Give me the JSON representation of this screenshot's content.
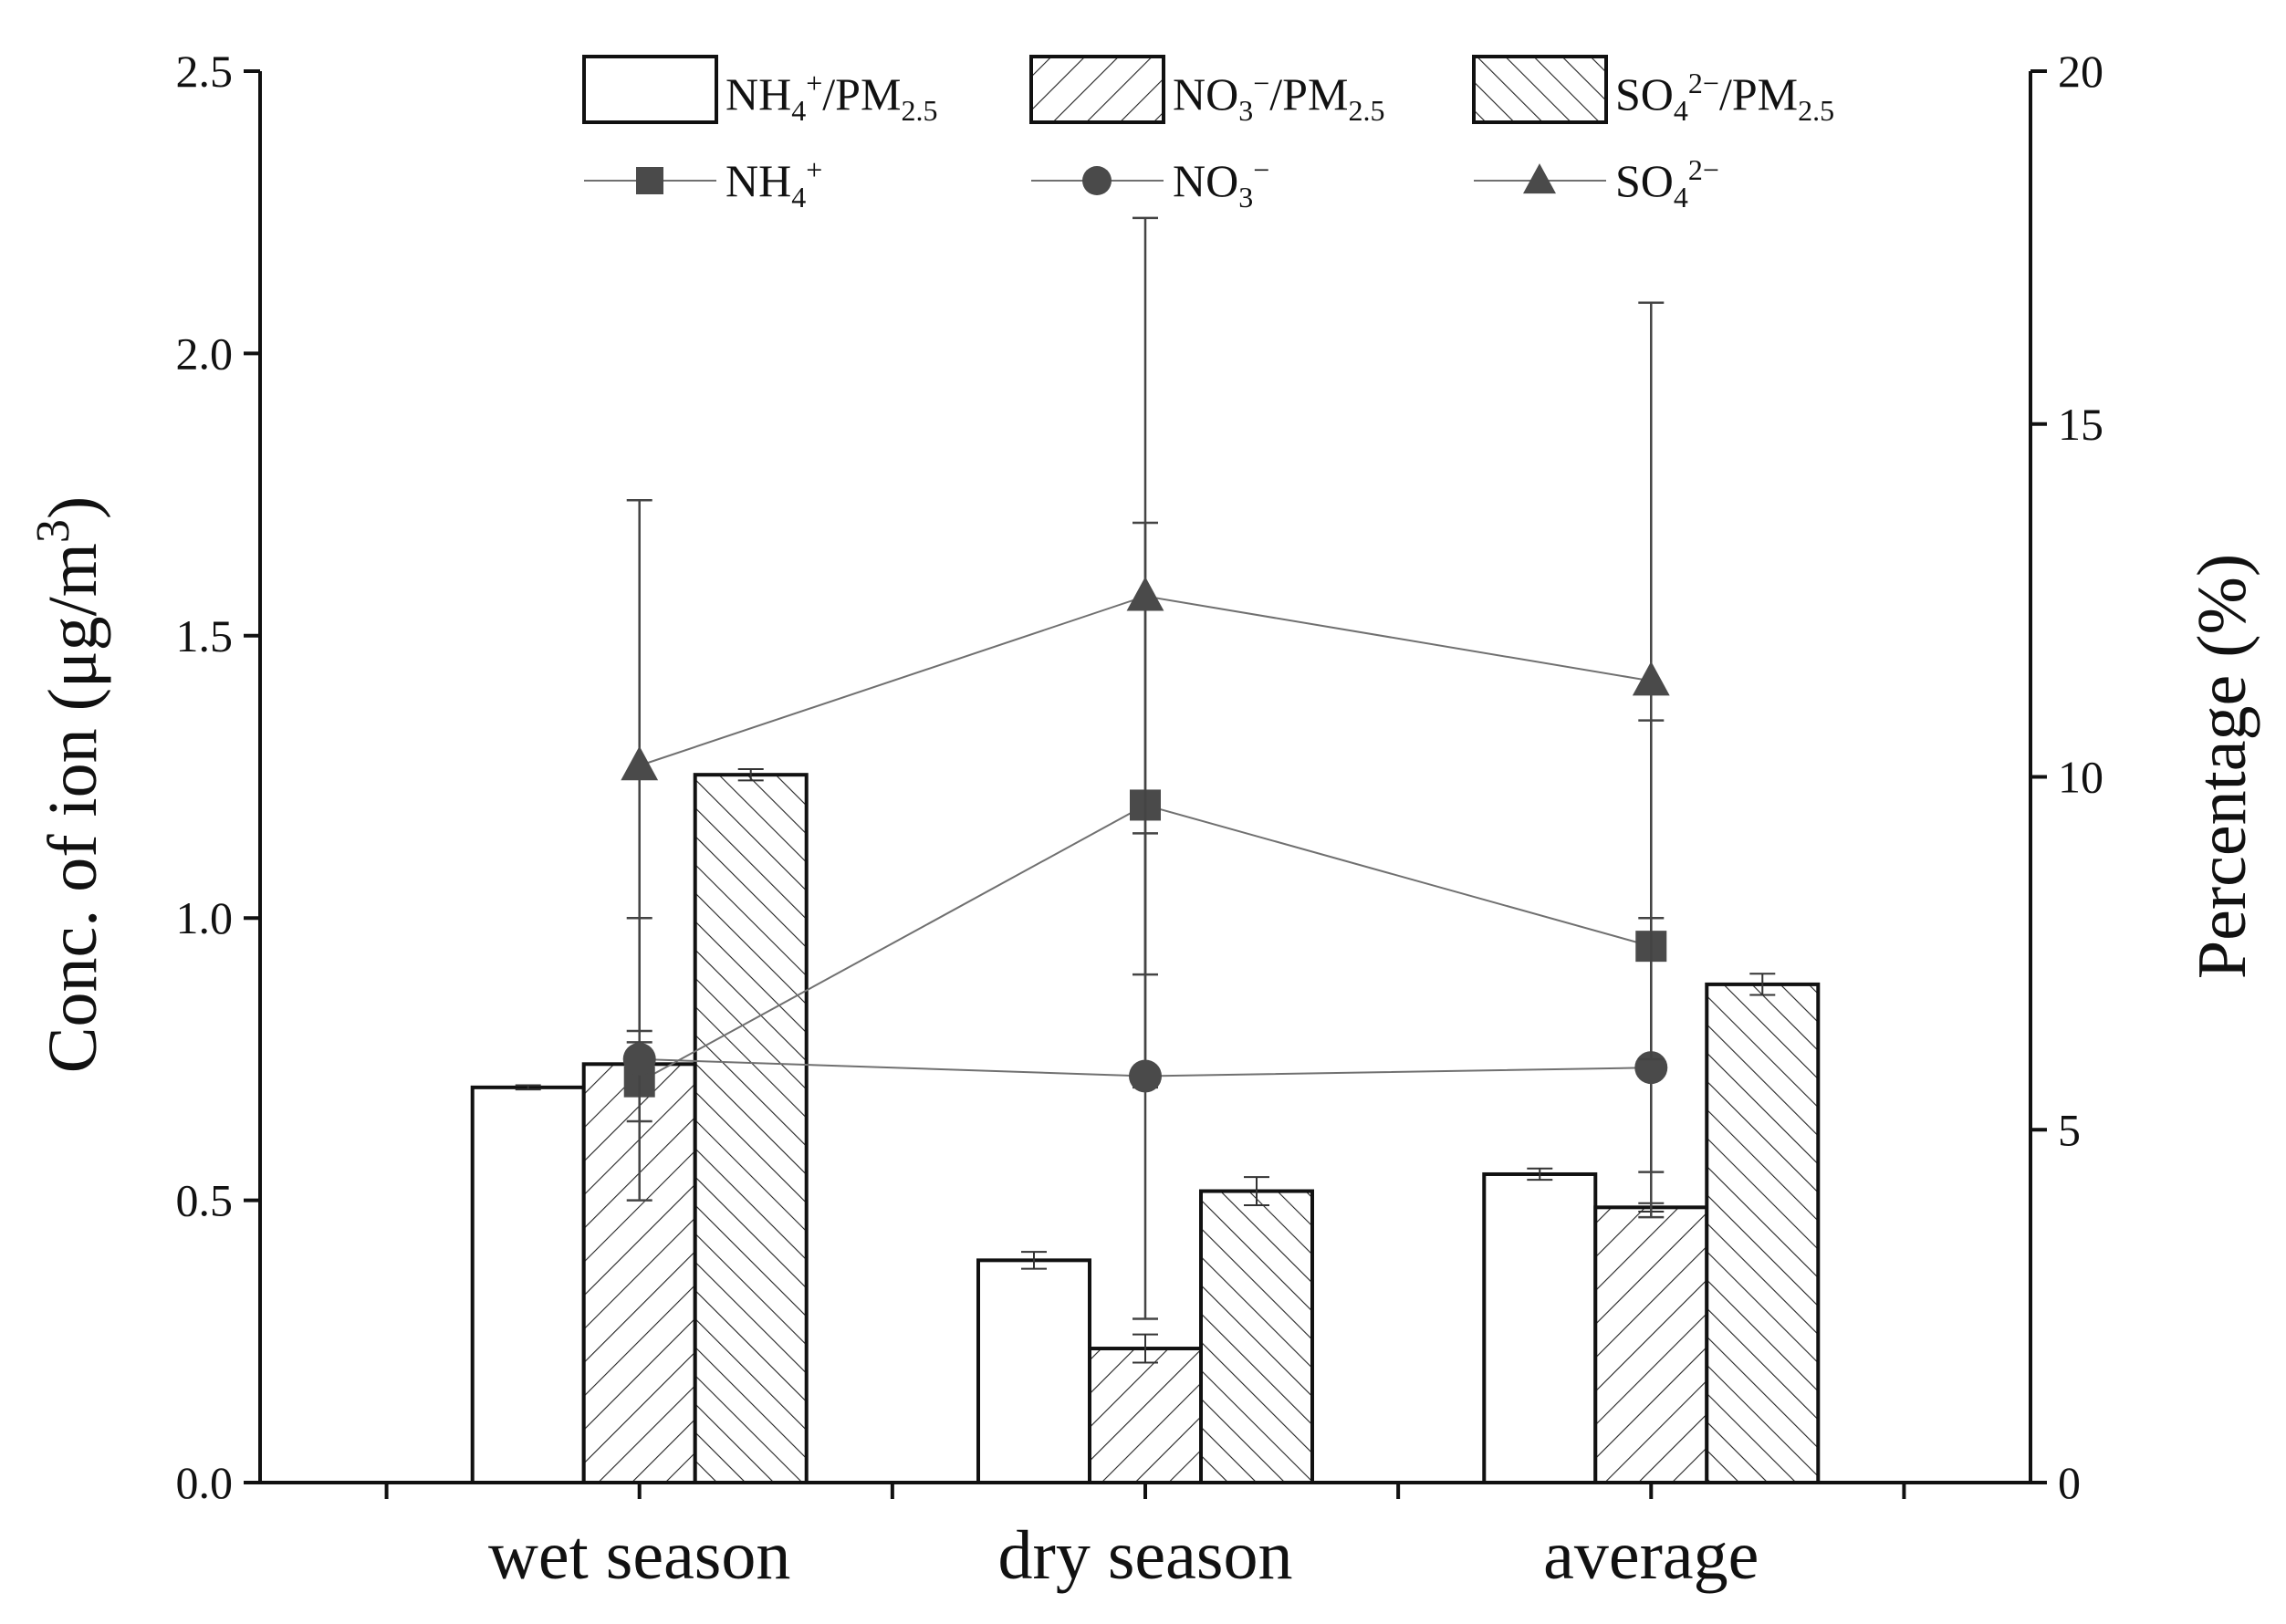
{
  "chart_data": {
    "type": "bar+line",
    "categories": [
      "wet season",
      "dry season",
      "average"
    ],
    "left_axis": {
      "label": "Conc. of ion (μg/m³)",
      "label_parts": [
        "Conc. of ion (μg/m",
        "3",
        ")"
      ],
      "range": [
        0,
        2.5
      ],
      "ticks": [
        "0.0",
        "0.5",
        "1.0",
        "1.5",
        "2.0",
        "2.5"
      ]
    },
    "right_axis": {
      "label": "Percentage (%)",
      "range": [
        0,
        20
      ],
      "ticks": [
        "0",
        "5",
        "10",
        "15",
        "20"
      ]
    },
    "bar_series": [
      {
        "name": "NH4+/PM2.5",
        "legend_parts": [
          "NH",
          "4",
          "+",
          "/PM",
          "2.5"
        ],
        "pattern": "none",
        "axis": "right",
        "values": [
          5.6,
          3.15,
          4.37
        ],
        "errors": [
          0.03,
          0.12,
          0.08
        ]
      },
      {
        "name": "NO3−/PM2.5",
        "legend_parts": [
          "NO",
          "3",
          "−",
          "/PM",
          "2.5"
        ],
        "pattern": "forward-hatch",
        "axis": "right",
        "values": [
          5.93,
          1.9,
          3.9
        ],
        "errors": [
          0.0,
          0.2,
          0.06
        ]
      },
      {
        "name": "SO42−/PM2.5",
        "legend_parts": [
          "SO",
          "4",
          "2−",
          "/PM",
          "2.5"
        ],
        "pattern": "back-hatch",
        "axis": "right",
        "values": [
          10.03,
          4.13,
          7.06
        ],
        "errors": [
          0.08,
          0.2,
          0.15
        ]
      }
    ],
    "line_series": [
      {
        "name": "NH4+",
        "legend_parts": [
          "NH",
          "4",
          "+"
        ],
        "marker": "square",
        "axis": "left",
        "values": [
          0.71,
          1.2,
          0.95
        ],
        "errors": [
          0.07,
          0.5,
          0.4
        ],
        "color": "#4a4a4a"
      },
      {
        "name": "NO3−",
        "legend_parts": [
          "NO",
          "3",
          "−"
        ],
        "marker": "circle",
        "axis": "left",
        "values": [
          0.75,
          0.72,
          0.735
        ],
        "errors": [
          0.25,
          0.43,
          0.265
        ],
        "color": "#4a4a4a"
      },
      {
        "name": "SO42−",
        "legend_parts": [
          "SO",
          "4",
          "2−"
        ],
        "marker": "triangle",
        "axis": "left",
        "values": [
          1.27,
          1.57,
          1.42
        ],
        "errors": [
          0.47,
          0.67,
          0.67
        ],
        "color": "#4a4a4a"
      }
    ],
    "legend_position": "top-center",
    "grid": false
  }
}
